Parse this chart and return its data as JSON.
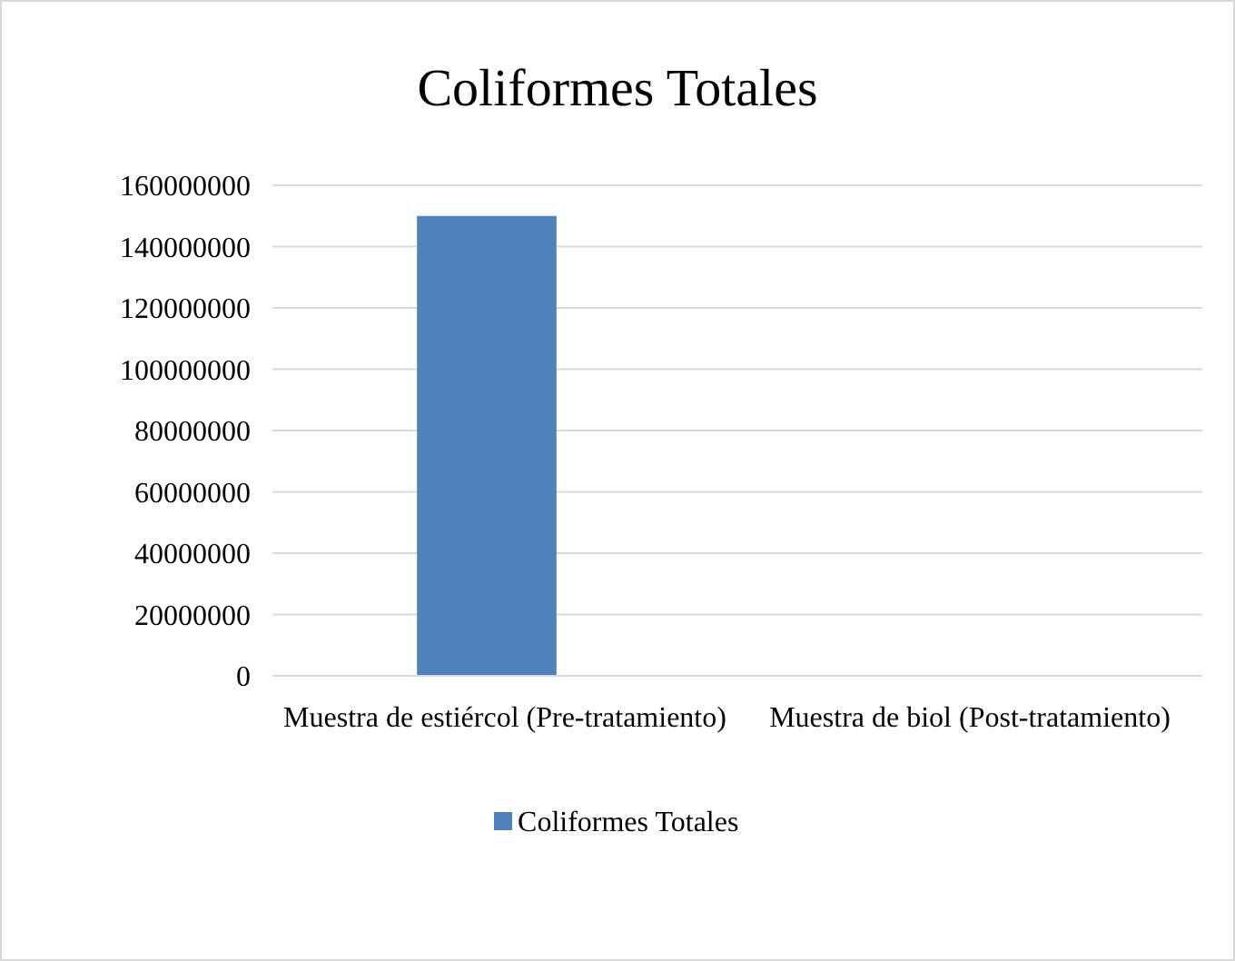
{
  "chart_data": {
    "type": "bar",
    "title": "Coliformes Totales",
    "categories": [
      "Muestra de estiércol (Pre-tratamiento)",
      "Muestra de biol (Post-tratamiento)"
    ],
    "series": [
      {
        "name": "Coliformes Totales",
        "color": "#4f81bd",
        "values": [
          150000000,
          0
        ]
      }
    ],
    "ylim": [
      0,
      160000000
    ],
    "yticks": [
      0,
      20000000,
      40000000,
      60000000,
      80000000,
      100000000,
      120000000,
      140000000,
      160000000
    ],
    "grid": "y",
    "legend": "bottom"
  }
}
